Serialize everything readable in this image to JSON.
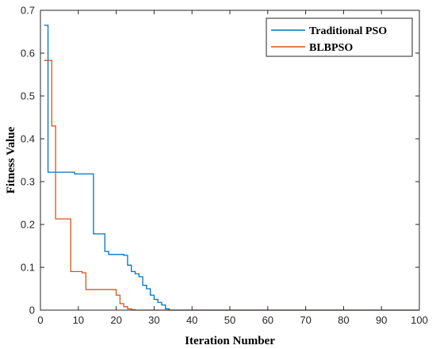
{
  "chart_data": {
    "type": "line",
    "title": "",
    "xlabel": "Iteration Number",
    "ylabel": "Fitness Value",
    "xlim": [
      0,
      100
    ],
    "ylim": [
      0,
      0.7
    ],
    "xticks": [
      "0",
      "10",
      "20",
      "30",
      "40",
      "50",
      "60",
      "70",
      "80",
      "90",
      "100"
    ],
    "yticks": [
      "0",
      "0.1",
      "0.2",
      "0.3",
      "0.4",
      "0.5",
      "0.6",
      "0.7"
    ],
    "grid": false,
    "legend_position": "top-right",
    "series": [
      {
        "name": "Traditional PSO",
        "color": "#0072BD",
        "step": true,
        "x": [
          1,
          2,
          3,
          4,
          5,
          6,
          7,
          8,
          9,
          10,
          11,
          12,
          13,
          14,
          15,
          16,
          17,
          18,
          19,
          20,
          21,
          22,
          23,
          24,
          25,
          26,
          27,
          28,
          29,
          30,
          31,
          32,
          33,
          34,
          35,
          100
        ],
        "y": [
          0.665,
          0.322,
          0.322,
          0.322,
          0.322,
          0.322,
          0.322,
          0.322,
          0.318,
          0.318,
          0.318,
          0.318,
          0.318,
          0.178,
          0.178,
          0.178,
          0.137,
          0.13,
          0.13,
          0.13,
          0.13,
          0.128,
          0.105,
          0.09,
          0.085,
          0.078,
          0.058,
          0.05,
          0.035,
          0.025,
          0.018,
          0.012,
          0.003,
          0.0,
          0.0,
          0.0
        ]
      },
      {
        "name": "BLBPSO",
        "color": "#D95319",
        "step": true,
        "x": [
          1,
          2,
          3,
          4,
          5,
          6,
          7,
          8,
          9,
          10,
          11,
          12,
          13,
          14,
          15,
          16,
          17,
          18,
          19,
          20,
          21,
          22,
          23,
          24,
          25,
          26,
          100
        ],
        "y": [
          0.583,
          0.583,
          0.43,
          0.213,
          0.213,
          0.213,
          0.213,
          0.09,
          0.09,
          0.09,
          0.087,
          0.048,
          0.048,
          0.048,
          0.048,
          0.048,
          0.048,
          0.048,
          0.048,
          0.035,
          0.015,
          0.008,
          0.003,
          0.001,
          0.0,
          0.0,
          0.0
        ]
      }
    ]
  }
}
